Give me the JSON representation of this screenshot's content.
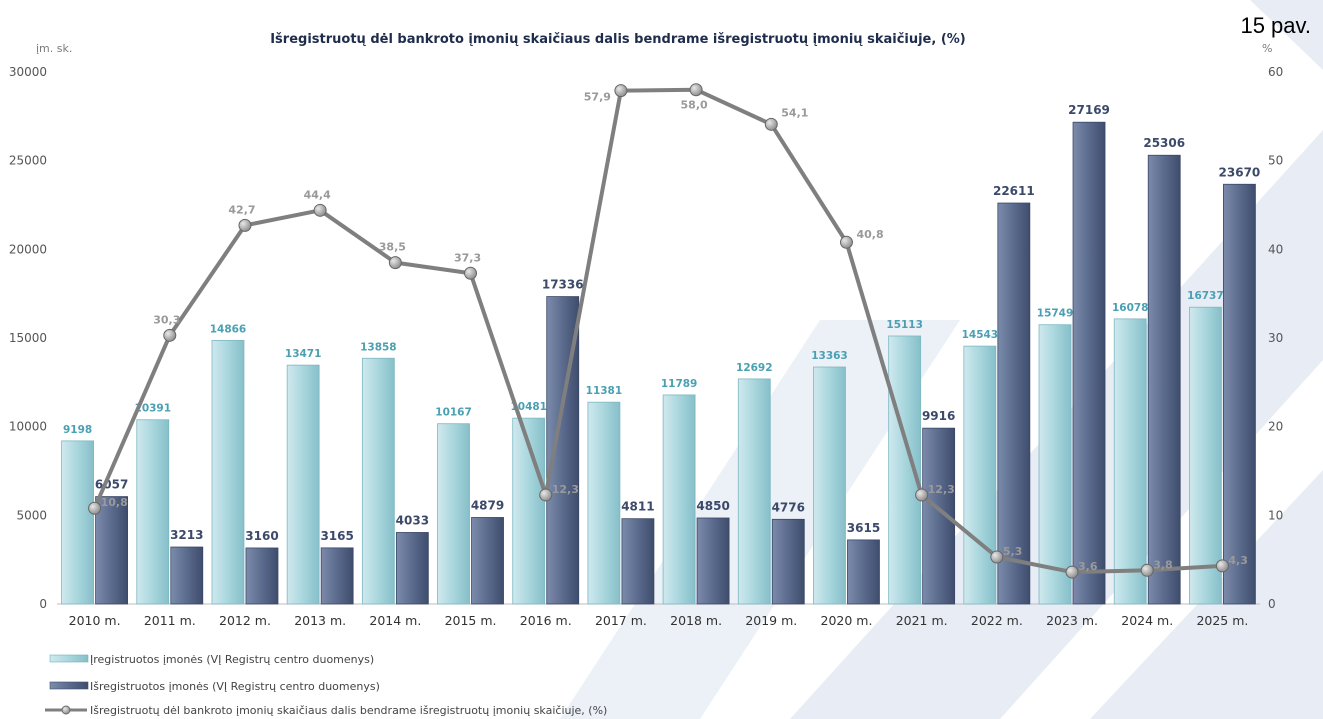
{
  "figure_label": "15 pav.",
  "chart_data": {
    "type": "bar",
    "title": "Išregistruotų dėl bankroto įmonių skaičiaus dalis bendrame išregistruotų įmonių skaičiuje, (%)",
    "ylabel": "įm. sk.",
    "ylabel_right": "%",
    "ylim": [
      0,
      30000
    ],
    "ylim_right": [
      0,
      60
    ],
    "yticks": [
      "0",
      "5000",
      "10000",
      "15000",
      "20000",
      "25000",
      "30000"
    ],
    "yticks_right": [
      "0",
      "10",
      "20",
      "30",
      "40",
      "50",
      "60"
    ],
    "categories": [
      "2010 m.",
      "2011 m.",
      "2012 m.",
      "2013 m.",
      "2014 m.",
      "2015 m.",
      "2016 m.",
      "2017 m.",
      "2018 m.",
      "2019 m.",
      "2020 m.",
      "2021 m.",
      "2022 m.",
      "2023 m.",
      "2024 m.",
      "2025 m."
    ],
    "grid": false,
    "legend_position": "bottom-left",
    "series": [
      {
        "name": "Įregistruotos įmonės (VĮ Registrų centro duomenys)",
        "type": "bar",
        "axis": "left",
        "color": "#a8d5dc",
        "values": [
          9198,
          10391,
          14866,
          13471,
          13858,
          10167,
          10481,
          11381,
          11789,
          12692,
          13363,
          15113,
          14543,
          15749,
          16078,
          16737
        ],
        "labels": [
          "9198",
          "10391",
          "14866",
          "13471",
          "13858",
          "10167",
          "10481",
          "11381",
          "11789",
          "12692",
          "13363",
          "15113",
          "14543",
          "15749",
          "16078",
          "16737"
        ]
      },
      {
        "name": "Išregistruotos įmonės (VĮ Registrų centro duomenys)",
        "type": "bar",
        "axis": "left",
        "color": "#5a6a8c",
        "values": [
          6057,
          3213,
          3160,
          3165,
          4033,
          4879,
          17336,
          4811,
          4850,
          4776,
          3615,
          9916,
          22611,
          27169,
          25306,
          23670
        ],
        "labels": [
          "6057",
          "3213",
          "3160",
          "3165",
          "4033",
          "4879",
          "17336",
          "4811",
          "4850",
          "4776",
          "3615",
          "9916",
          "22611",
          "27169",
          "25306",
          "23670"
        ]
      },
      {
        "name": "Išregistruotų dėl bankroto įmonių skaičiaus dalis bendrame išregistruotų įmonių skaičiuje, (%)",
        "type": "line",
        "axis": "right",
        "color": "#7f7f7f",
        "values": [
          10.8,
          30.3,
          42.7,
          44.4,
          38.5,
          37.3,
          12.3,
          57.9,
          58.0,
          54.1,
          40.8,
          12.3,
          5.3,
          3.6,
          3.8,
          4.3
        ],
        "labels": [
          "10,8",
          "30,3",
          "42,7",
          "44,4",
          "38,5",
          "37,3",
          "12,3",
          "57,9",
          "58,0",
          "54,1",
          "40,8",
          "12,3",
          "5,3",
          "3,6",
          "3,8",
          "4,3"
        ]
      }
    ]
  }
}
